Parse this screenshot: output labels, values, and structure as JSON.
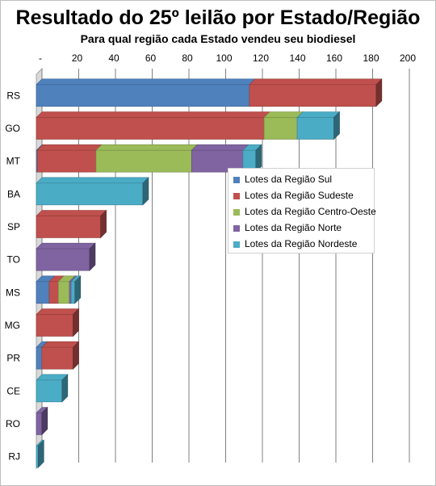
{
  "chart_data": {
    "type": "bar",
    "orientation": "horizontal",
    "stacked": true,
    "three_d": true,
    "title": "Resultado do 25º leilão por Estado/Região",
    "subtitle": "Para qual região cada Estado vendeu seu biodiesel",
    "categories": [
      "RS",
      "GO",
      "MT",
      "BA",
      "SP",
      "TO",
      "MS",
      "MG",
      "PR",
      "CE",
      "RO",
      "RJ"
    ],
    "x_ticks": [
      "-",
      "20",
      "40",
      "60",
      "80",
      "100",
      "120",
      "140",
      "160",
      "180",
      "200"
    ],
    "xlim": [
      0,
      200
    ],
    "grid": true,
    "legend_position": "center-right",
    "series": [
      {
        "name": "Lotes da Região Sul",
        "color": "#4f81bd",
        "values": [
          116,
          0,
          0.5,
          0,
          0,
          0,
          7,
          0,
          3,
          0,
          0,
          0
        ]
      },
      {
        "name": "Lotes da Região Sudeste",
        "color": "#c0504d",
        "values": [
          69,
          124,
          32,
          0,
          35,
          0,
          5,
          20,
          17,
          0,
          0,
          0
        ]
      },
      {
        "name": "Lotes da Região Centro-Oeste",
        "color": "#9bbb59",
        "values": [
          0,
          18,
          52,
          0,
          0,
          0,
          6,
          0,
          0,
          0,
          0,
          0
        ]
      },
      {
        "name": "Lotes da Região Norte",
        "color": "#8064a2",
        "values": [
          0,
          0,
          28,
          0,
          0,
          29,
          1,
          0,
          0,
          0,
          3,
          0
        ]
      },
      {
        "name": "Lotes da Região Nordeste",
        "color": "#4bacc6",
        "values": [
          0,
          20,
          7,
          58,
          0,
          0,
          2,
          0,
          0,
          14,
          0,
          1
        ]
      }
    ]
  }
}
